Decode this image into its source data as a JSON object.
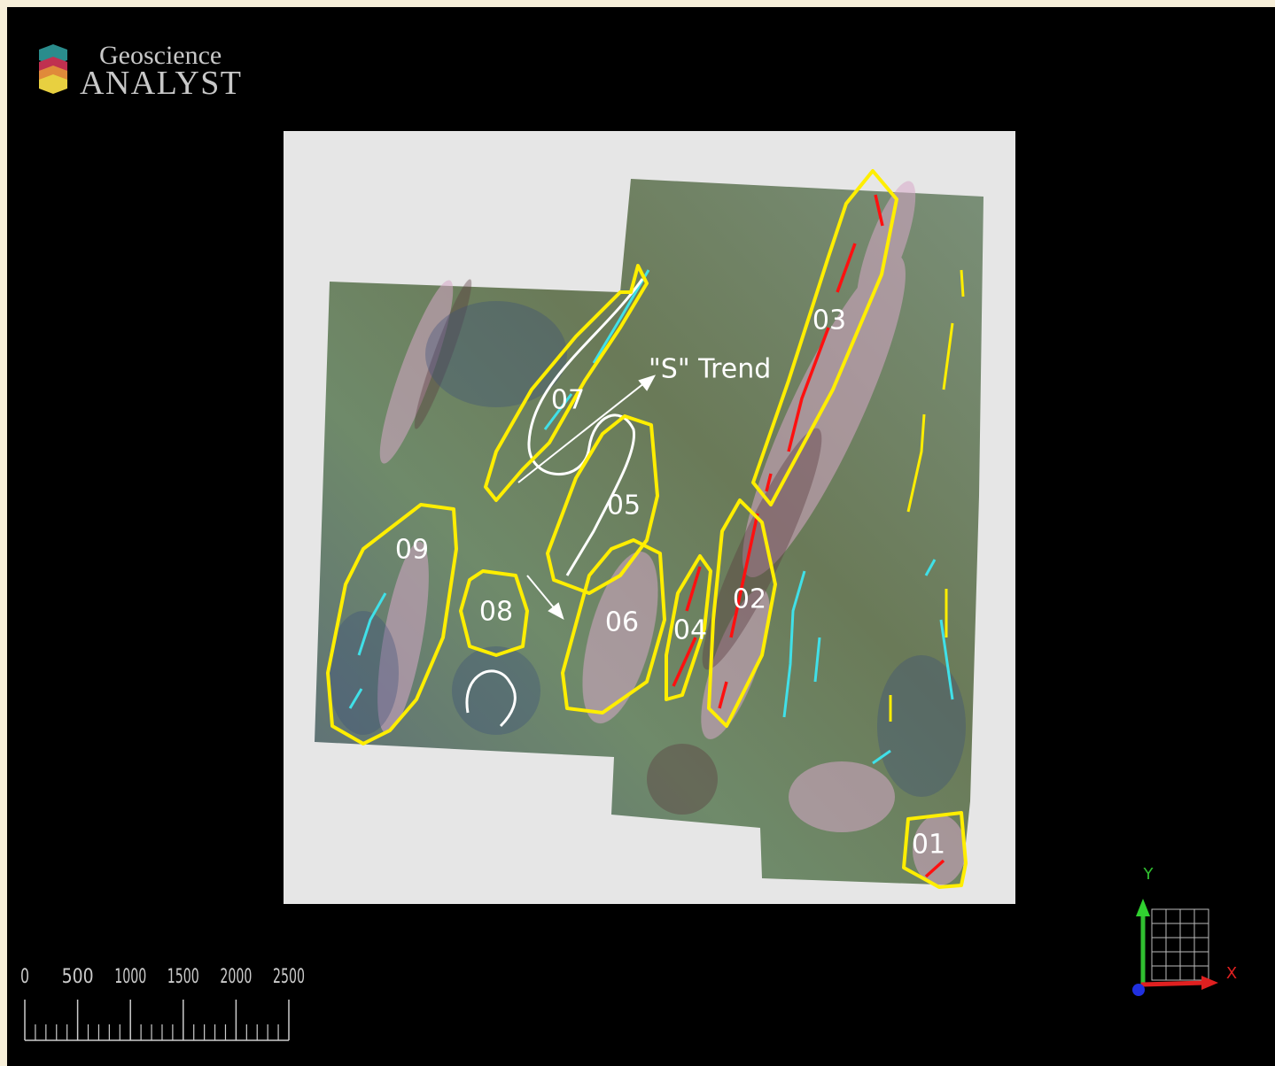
{
  "logo": {
    "line1": "Geoscience",
    "line2": "ANALYST"
  },
  "map": {
    "annotation": "\"S\" Trend",
    "zones": [
      "01",
      "02",
      "03",
      "04",
      "05",
      "06",
      "07",
      "08",
      "09"
    ]
  },
  "scale_bar": {
    "ticks": [
      0,
      500,
      1000,
      1500,
      2000,
      2500
    ]
  },
  "axes": {
    "x": "X",
    "y": "Y"
  }
}
